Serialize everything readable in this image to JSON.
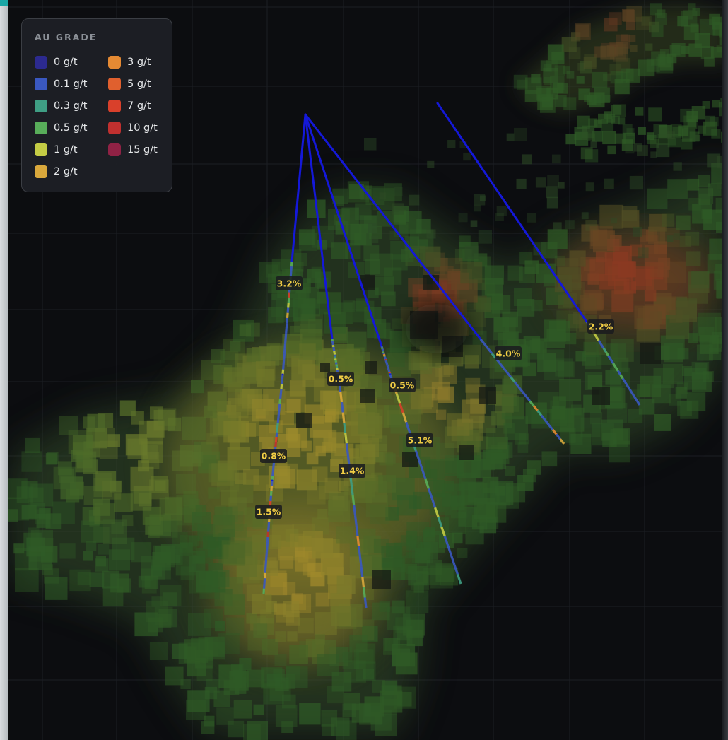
{
  "legend": {
    "title": "AU GRADE",
    "items": [
      {
        "label": "0 g/t",
        "color": "#2c2a8f"
      },
      {
        "label": "0.1 g/t",
        "color": "#3a58c0"
      },
      {
        "label": "0.3 g/t",
        "color": "#3f9e84"
      },
      {
        "label": "0.5 g/t",
        "color": "#58ad5a"
      },
      {
        "label": "1 g/t",
        "color": "#c4cc45"
      },
      {
        "label": "2 g/t",
        "color": "#d9a83c"
      },
      {
        "label": "3 g/t",
        "color": "#e58a33"
      },
      {
        "label": "5 g/t",
        "color": "#e0602e"
      },
      {
        "label": "7 g/t",
        "color": "#d9402b"
      },
      {
        "label": "10 g/t",
        "color": "#c0302f"
      },
      {
        "label": "15 g/t",
        "color": "#902245"
      }
    ]
  },
  "drillholes": [
    {
      "id": "A",
      "label": "3.2%"
    },
    {
      "id": "B",
      "label": "0.8%"
    },
    {
      "id": "C",
      "label": "1.5%"
    },
    {
      "id": "D",
      "label": "0.5%"
    },
    {
      "id": "E",
      "label": "1.4%"
    },
    {
      "id": "F",
      "label": "0.5%"
    },
    {
      "id": "G",
      "label": "5.1%"
    },
    {
      "id": "H",
      "label": "4.0%"
    },
    {
      "id": "I",
      "label": "2.2%"
    }
  ],
  "colors": {
    "hole_trace": "#1418d8",
    "label_bg": "#1a1b1f",
    "label_text": "#f3cf45"
  }
}
